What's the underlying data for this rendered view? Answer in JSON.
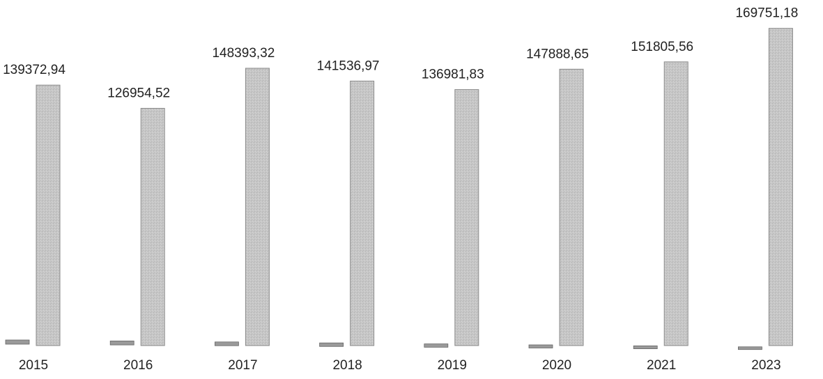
{
  "chart_data": {
    "type": "bar",
    "title": "",
    "xlabel": "",
    "ylabel": "",
    "categories": [
      "2015",
      "2016",
      "2017",
      "2018",
      "2019",
      "2020",
      "2021",
      "2023"
    ],
    "series": [
      {
        "values": [
          2.5,
          2.2,
          2.0,
          1.8,
          1.6,
          1.4,
          1.3,
          1.2
        ]
      },
      {
        "values": [
          139372.94,
          126954.52,
          148393.32,
          141536.97,
          136981.83,
          147888.65,
          151805.56,
          169751.18
        ]
      }
    ],
    "data_labels": [
      "139372,94",
      "126954,52",
      "148393,32",
      "141536,97",
      "136981,83",
      "147888,65",
      "151805,56",
      "169751,18"
    ],
    "ylim": [
      0,
      170000
    ],
    "grid": false,
    "legend": "none",
    "colors": {
      "bar_fill": "#c4c4c4",
      "bar_stroke": "#8a8a8a",
      "small_bar_fill": "#9a9a9a"
    }
  }
}
